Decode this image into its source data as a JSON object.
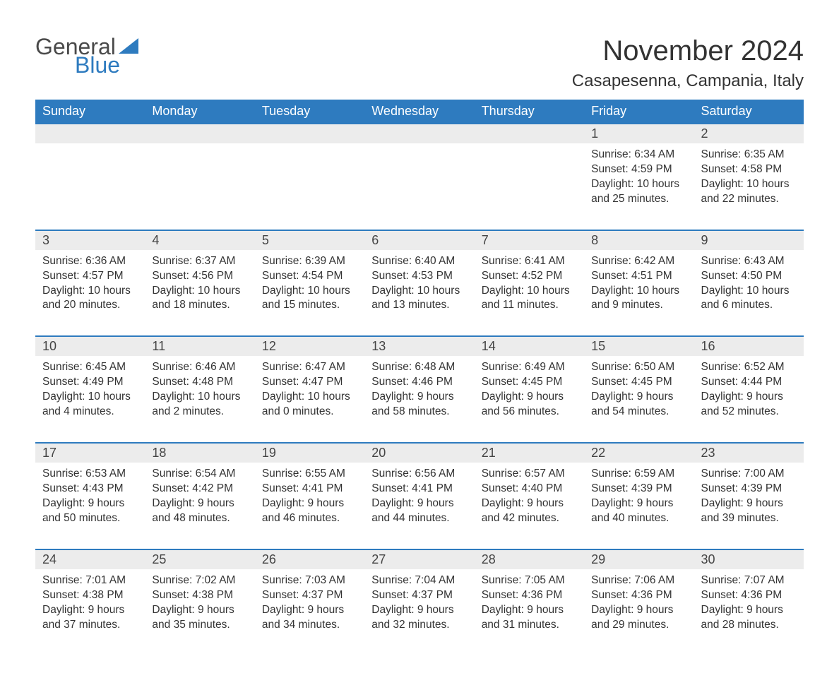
{
  "logo": {
    "text1": "General",
    "text2": "Blue"
  },
  "title": "November 2024",
  "location": "Casapesenna, Campania, Italy",
  "colors": {
    "header_bg": "#2e7bbf",
    "header_text": "#ffffff",
    "daynum_bg": "#ececec",
    "border_top": "#2e7bbf",
    "body_text": "#333333",
    "page_bg": "#ffffff"
  },
  "day_headers": [
    "Sunday",
    "Monday",
    "Tuesday",
    "Wednesday",
    "Thursday",
    "Friday",
    "Saturday"
  ],
  "weeks": [
    [
      null,
      null,
      null,
      null,
      null,
      {
        "n": "1",
        "sunrise": "Sunrise: 6:34 AM",
        "sunset": "Sunset: 4:59 PM",
        "day1": "Daylight: 10 hours",
        "day2": "and 25 minutes."
      },
      {
        "n": "2",
        "sunrise": "Sunrise: 6:35 AM",
        "sunset": "Sunset: 4:58 PM",
        "day1": "Daylight: 10 hours",
        "day2": "and 22 minutes."
      }
    ],
    [
      {
        "n": "3",
        "sunrise": "Sunrise: 6:36 AM",
        "sunset": "Sunset: 4:57 PM",
        "day1": "Daylight: 10 hours",
        "day2": "and 20 minutes."
      },
      {
        "n": "4",
        "sunrise": "Sunrise: 6:37 AM",
        "sunset": "Sunset: 4:56 PM",
        "day1": "Daylight: 10 hours",
        "day2": "and 18 minutes."
      },
      {
        "n": "5",
        "sunrise": "Sunrise: 6:39 AM",
        "sunset": "Sunset: 4:54 PM",
        "day1": "Daylight: 10 hours",
        "day2": "and 15 minutes."
      },
      {
        "n": "6",
        "sunrise": "Sunrise: 6:40 AM",
        "sunset": "Sunset: 4:53 PM",
        "day1": "Daylight: 10 hours",
        "day2": "and 13 minutes."
      },
      {
        "n": "7",
        "sunrise": "Sunrise: 6:41 AM",
        "sunset": "Sunset: 4:52 PM",
        "day1": "Daylight: 10 hours",
        "day2": "and 11 minutes."
      },
      {
        "n": "8",
        "sunrise": "Sunrise: 6:42 AM",
        "sunset": "Sunset: 4:51 PM",
        "day1": "Daylight: 10 hours",
        "day2": "and 9 minutes."
      },
      {
        "n": "9",
        "sunrise": "Sunrise: 6:43 AM",
        "sunset": "Sunset: 4:50 PM",
        "day1": "Daylight: 10 hours",
        "day2": "and 6 minutes."
      }
    ],
    [
      {
        "n": "10",
        "sunrise": "Sunrise: 6:45 AM",
        "sunset": "Sunset: 4:49 PM",
        "day1": "Daylight: 10 hours",
        "day2": "and 4 minutes."
      },
      {
        "n": "11",
        "sunrise": "Sunrise: 6:46 AM",
        "sunset": "Sunset: 4:48 PM",
        "day1": "Daylight: 10 hours",
        "day2": "and 2 minutes."
      },
      {
        "n": "12",
        "sunrise": "Sunrise: 6:47 AM",
        "sunset": "Sunset: 4:47 PM",
        "day1": "Daylight: 10 hours",
        "day2": "and 0 minutes."
      },
      {
        "n": "13",
        "sunrise": "Sunrise: 6:48 AM",
        "sunset": "Sunset: 4:46 PM",
        "day1": "Daylight: 9 hours",
        "day2": "and 58 minutes."
      },
      {
        "n": "14",
        "sunrise": "Sunrise: 6:49 AM",
        "sunset": "Sunset: 4:45 PM",
        "day1": "Daylight: 9 hours",
        "day2": "and 56 minutes."
      },
      {
        "n": "15",
        "sunrise": "Sunrise: 6:50 AM",
        "sunset": "Sunset: 4:45 PM",
        "day1": "Daylight: 9 hours",
        "day2": "and 54 minutes."
      },
      {
        "n": "16",
        "sunrise": "Sunrise: 6:52 AM",
        "sunset": "Sunset: 4:44 PM",
        "day1": "Daylight: 9 hours",
        "day2": "and 52 minutes."
      }
    ],
    [
      {
        "n": "17",
        "sunrise": "Sunrise: 6:53 AM",
        "sunset": "Sunset: 4:43 PM",
        "day1": "Daylight: 9 hours",
        "day2": "and 50 minutes."
      },
      {
        "n": "18",
        "sunrise": "Sunrise: 6:54 AM",
        "sunset": "Sunset: 4:42 PM",
        "day1": "Daylight: 9 hours",
        "day2": "and 48 minutes."
      },
      {
        "n": "19",
        "sunrise": "Sunrise: 6:55 AM",
        "sunset": "Sunset: 4:41 PM",
        "day1": "Daylight: 9 hours",
        "day2": "and 46 minutes."
      },
      {
        "n": "20",
        "sunrise": "Sunrise: 6:56 AM",
        "sunset": "Sunset: 4:41 PM",
        "day1": "Daylight: 9 hours",
        "day2": "and 44 minutes."
      },
      {
        "n": "21",
        "sunrise": "Sunrise: 6:57 AM",
        "sunset": "Sunset: 4:40 PM",
        "day1": "Daylight: 9 hours",
        "day2": "and 42 minutes."
      },
      {
        "n": "22",
        "sunrise": "Sunrise: 6:59 AM",
        "sunset": "Sunset: 4:39 PM",
        "day1": "Daylight: 9 hours",
        "day2": "and 40 minutes."
      },
      {
        "n": "23",
        "sunrise": "Sunrise: 7:00 AM",
        "sunset": "Sunset: 4:39 PM",
        "day1": "Daylight: 9 hours",
        "day2": "and 39 minutes."
      }
    ],
    [
      {
        "n": "24",
        "sunrise": "Sunrise: 7:01 AM",
        "sunset": "Sunset: 4:38 PM",
        "day1": "Daylight: 9 hours",
        "day2": "and 37 minutes."
      },
      {
        "n": "25",
        "sunrise": "Sunrise: 7:02 AM",
        "sunset": "Sunset: 4:38 PM",
        "day1": "Daylight: 9 hours",
        "day2": "and 35 minutes."
      },
      {
        "n": "26",
        "sunrise": "Sunrise: 7:03 AM",
        "sunset": "Sunset: 4:37 PM",
        "day1": "Daylight: 9 hours",
        "day2": "and 34 minutes."
      },
      {
        "n": "27",
        "sunrise": "Sunrise: 7:04 AM",
        "sunset": "Sunset: 4:37 PM",
        "day1": "Daylight: 9 hours",
        "day2": "and 32 minutes."
      },
      {
        "n": "28",
        "sunrise": "Sunrise: 7:05 AM",
        "sunset": "Sunset: 4:36 PM",
        "day1": "Daylight: 9 hours",
        "day2": "and 31 minutes."
      },
      {
        "n": "29",
        "sunrise": "Sunrise: 7:06 AM",
        "sunset": "Sunset: 4:36 PM",
        "day1": "Daylight: 9 hours",
        "day2": "and 29 minutes."
      },
      {
        "n": "30",
        "sunrise": "Sunrise: 7:07 AM",
        "sunset": "Sunset: 4:36 PM",
        "day1": "Daylight: 9 hours",
        "day2": "and 28 minutes."
      }
    ]
  ]
}
